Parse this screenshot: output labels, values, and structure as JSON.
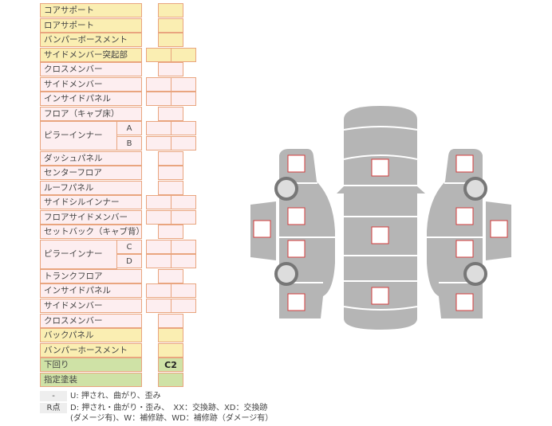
{
  "colors": {
    "front_rear": "#faeeb2",
    "body": "#fdeef0",
    "under": "#cfe2a6",
    "border": "#e9a57f",
    "car": "#b5b5b5",
    "marker": "#d43c3c"
  },
  "rows": [
    {
      "label": "コアサポート",
      "color": "yellow",
      "cells": 1
    },
    {
      "label": "ロアサポート",
      "color": "yellow",
      "cells": 1
    },
    {
      "label": "バンパーボースメント",
      "color": "yellow",
      "cells": 1
    },
    {
      "label": "サイドメンバー突起部",
      "color": "yellow",
      "cells": 2
    },
    {
      "label": "クロスメンバー",
      "color": "pink",
      "cells": 1
    },
    {
      "label": "サイドメンバー",
      "color": "pink",
      "cells": 2
    },
    {
      "label": "インサイドパネル",
      "color": "pink",
      "cells": 2
    },
    {
      "label": "フロア（キャブ床）",
      "color": "pink",
      "cells": 1
    },
    {
      "label": "ピラーインナー",
      "sub": "A",
      "color": "pink",
      "cells": 2,
      "group_start": true
    },
    {
      "label": "",
      "sub": "B",
      "color": "pink",
      "cells": 2
    },
    {
      "label": "ダッシュパネル",
      "color": "pink",
      "cells": 1
    },
    {
      "label": "センターフロア",
      "color": "pink",
      "cells": 1
    },
    {
      "label": "ルーフパネル",
      "color": "pink",
      "cells": 1
    },
    {
      "label": "サイドシルインナー",
      "color": "pink",
      "cells": 2
    },
    {
      "label": "フロアサイドメンバー",
      "color": "pink",
      "cells": 2
    },
    {
      "label": "セットバック（キャブ背）",
      "color": "pink",
      "cells": 1
    },
    {
      "label": "ピラーインナー",
      "sub": "C",
      "color": "pink",
      "cells": 2,
      "group_start": true
    },
    {
      "label": "",
      "sub": "D",
      "color": "pink",
      "cells": 2
    },
    {
      "label": "トランクフロア",
      "color": "pink",
      "cells": 1
    },
    {
      "label": "インサイドパネル",
      "color": "pink",
      "cells": 2
    },
    {
      "label": "サイドメンバー",
      "color": "pink",
      "cells": 2
    },
    {
      "label": "クロスメンバー",
      "color": "pink",
      "cells": 1
    },
    {
      "label": "バックパネル",
      "color": "yellow",
      "cells": 1
    },
    {
      "label": "バンパーホースメント",
      "color": "yellow",
      "cells": 1
    },
    {
      "label": "下回り",
      "color": "green",
      "cells": 1,
      "value": "C2"
    },
    {
      "label": "指定塗装",
      "color": "green",
      "cells": 1
    }
  ],
  "legend": [
    {
      "key": "-",
      "text": "U: 押され、曲がり、歪み"
    },
    {
      "key": "R点",
      "text": "D: 押され・曲がり・歪み、　XX：交換跡、XD：交換跡",
      "text2": "(ダメージ有)、W：補修跡、WD：補修跡（ダメージ有）"
    }
  ]
}
